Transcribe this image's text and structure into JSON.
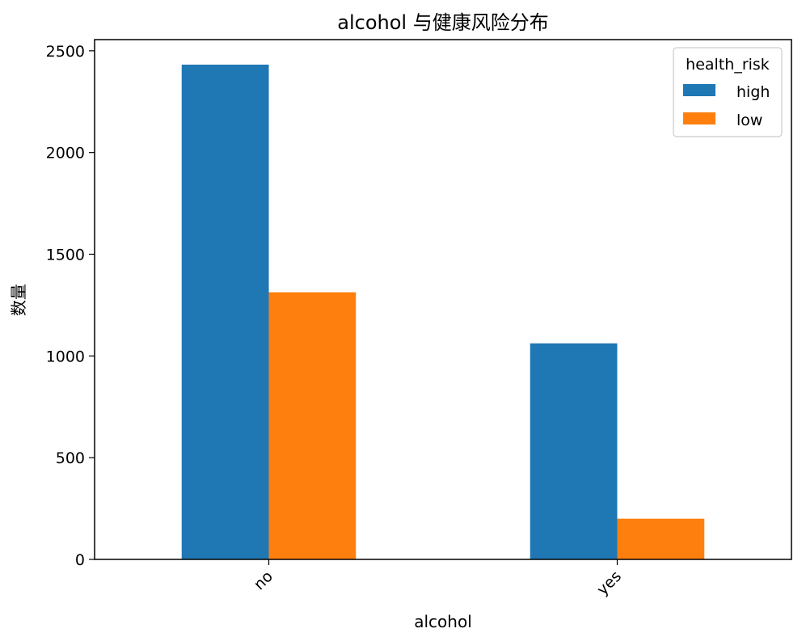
{
  "chart_data": {
    "type": "bar",
    "title": "alcohol 与健康风险分布",
    "xlabel": "alcohol",
    "ylabel": "数量",
    "categories": [
      "no",
      "yes"
    ],
    "series": [
      {
        "name": "high",
        "values": [
          2432,
          1062
        ],
        "color": "#1f77b4"
      },
      {
        "name": "low",
        "values": [
          1313,
          200
        ],
        "color": "#ff7f0e"
      }
    ],
    "ylim": [
      0,
      2555
    ],
    "yticks": [
      0,
      500,
      1000,
      1500,
      2000,
      2500
    ],
    "legend": {
      "title": "health_risk",
      "placement": "top-right"
    },
    "grid": false
  }
}
